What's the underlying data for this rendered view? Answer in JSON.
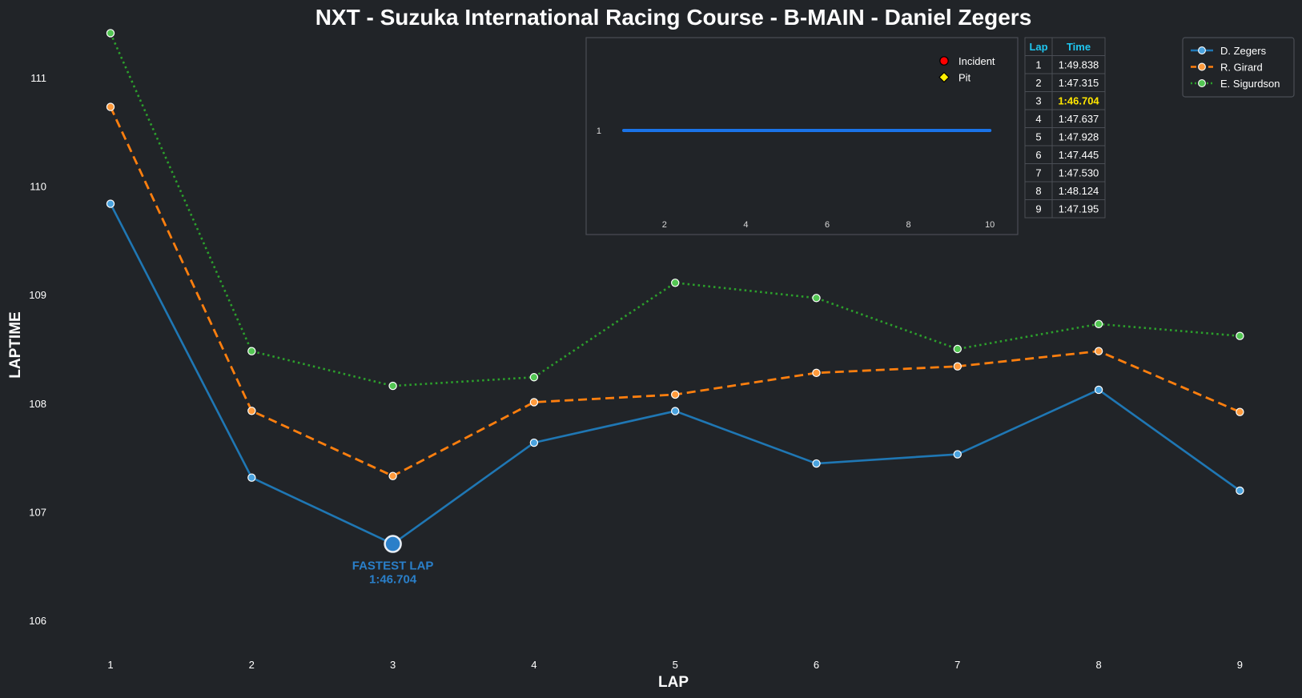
{
  "chart_data": {
    "type": "line",
    "title": "NXT - Suzuka International Racing Course - B-MAIN - Daniel Zegers",
    "xlabel": "LAP",
    "ylabel": "LAPTIME",
    "x": [
      1,
      2,
      3,
      4,
      5,
      6,
      7,
      8,
      9
    ],
    "x_ticks": [
      "1",
      "2",
      "3",
      "4",
      "5",
      "6",
      "7",
      "8",
      "9"
    ],
    "ylim": [
      105.7,
      111.4
    ],
    "y_ticks": [
      "106",
      "107",
      "108",
      "109",
      "110",
      "111"
    ],
    "grid": false,
    "legend_position": "top-right",
    "series": [
      {
        "name": "D. Zegers",
        "color": "#1f77b4",
        "style": "solid",
        "values": [
          109.838,
          107.315,
          106.704,
          107.637,
          107.928,
          107.445,
          107.53,
          108.124,
          107.195
        ]
      },
      {
        "name": "R. Girard",
        "color": "#ff7f0e",
        "style": "dashed",
        "values": [
          110.73,
          107.93,
          107.33,
          108.01,
          108.08,
          108.28,
          108.34,
          108.48,
          107.92
        ]
      },
      {
        "name": "E. Sigurdson",
        "color": "#2ca02c",
        "style": "dotted",
        "values": [
          111.41,
          108.48,
          108.16,
          108.24,
          109.11,
          108.97,
          108.5,
          108.73,
          108.62
        ]
      }
    ],
    "annotation": {
      "line1": "FASTEST LAP",
      "line2": "1:46.704",
      "lap": 3,
      "value": 106.704
    },
    "inset": {
      "type": "line",
      "x_ticks": [
        "2",
        "4",
        "6",
        "8",
        "10"
      ],
      "y_tick": "1",
      "xlim": [
        0.2,
        10.5
      ],
      "position_line": {
        "x_start": 1,
        "x_end": 10,
        "y": 1,
        "color": "#1a73e8"
      },
      "legend": [
        {
          "label": "Incident",
          "marker": "circle",
          "color": "#ff0000"
        },
        {
          "label": "Pit",
          "marker": "diamond",
          "color": "#ffee00"
        }
      ]
    },
    "lap_table": {
      "headers": [
        "Lap",
        "Time"
      ],
      "rows": [
        [
          "1",
          "1:49.838"
        ],
        [
          "2",
          "1:47.315"
        ],
        [
          "3",
          "1:46.704"
        ],
        [
          "4",
          "1:47.637"
        ],
        [
          "5",
          "1:47.928"
        ],
        [
          "6",
          "1:47.445"
        ],
        [
          "7",
          "1:47.530"
        ],
        [
          "8",
          "1:48.124"
        ],
        [
          "9",
          "1:47.195"
        ]
      ],
      "best_row": 3,
      "best_color": "#ffe600",
      "header_color": "#1fc6f0"
    }
  }
}
